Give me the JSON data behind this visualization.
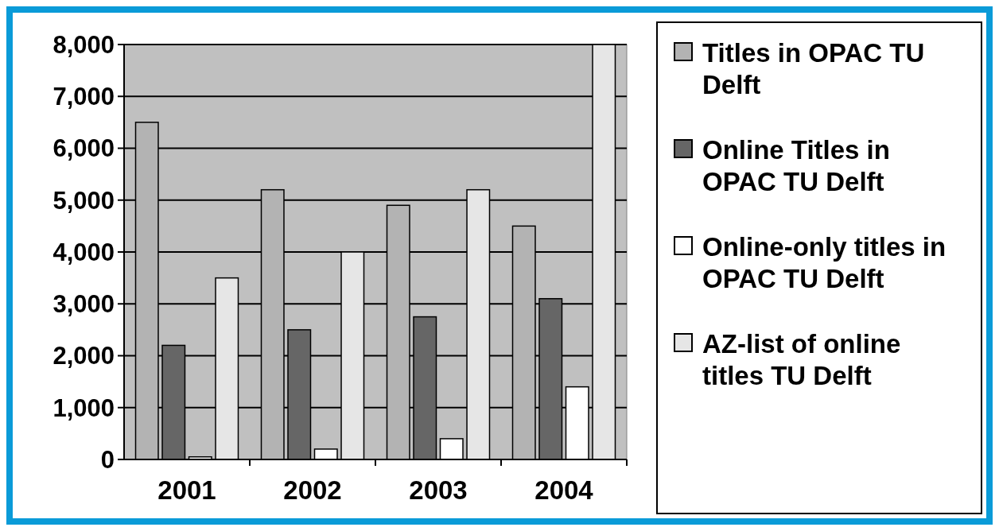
{
  "chart_data": {
    "type": "bar",
    "categories": [
      "2001",
      "2002",
      "2003",
      "2004"
    ],
    "series": [
      {
        "name": "Titles in OPAC TU Delft",
        "color": "#b3b3b3",
        "values": [
          6500,
          5200,
          4900,
          4500
        ]
      },
      {
        "name": "Online Titles in OPAC TU Delft",
        "color": "#666666",
        "values": [
          2200,
          2500,
          2750,
          3100
        ]
      },
      {
        "name": "Online-only titles in OPAC TU Delft",
        "color": "#ffffff",
        "values": [
          50,
          200,
          400,
          1400
        ]
      },
      {
        "name": "AZ-list of online titles TU Delft",
        "color": "#e6e6e6",
        "values": [
          3500,
          4000,
          5200,
          8000
        ]
      }
    ],
    "ylim": [
      0,
      8000
    ],
    "yticks": [
      {
        "value": 0,
        "label": "0"
      },
      {
        "value": 1000,
        "label": "1,000"
      },
      {
        "value": 2000,
        "label": "2,000"
      },
      {
        "value": 3000,
        "label": "3,000"
      },
      {
        "value": 4000,
        "label": "4,000"
      },
      {
        "value": 5000,
        "label": "5,000"
      },
      {
        "value": 6000,
        "label": "6,000"
      },
      {
        "value": 7000,
        "label": "7,000"
      },
      {
        "value": 8000,
        "label": "8,000"
      }
    ],
    "grid": "y",
    "legend": "right"
  }
}
